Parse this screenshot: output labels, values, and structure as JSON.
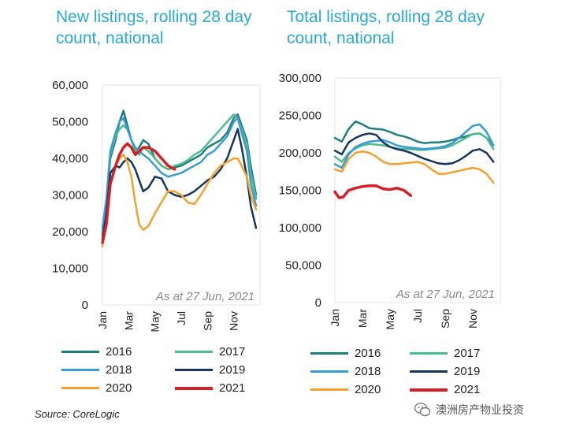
{
  "titles": {
    "left_line1": "New listings, rolling 28 day",
    "left_line2": "count, national",
    "right_line1": "Total listings, rolling 28 day",
    "right_line2": "count, national"
  },
  "source": "Source: CoreLogic",
  "watermark": "澳洲房产物业投资",
  "chart_data": [
    {
      "type": "line",
      "title": "New listings, rolling 28 day count, national",
      "annotation": "As at 27 Jun, 2021",
      "x_tick_labels": [
        "Jan",
        "Mar",
        "May",
        "Jul",
        "Sep",
        "Nov"
      ],
      "x_unit": "month",
      "xlim": [
        0,
        12
      ],
      "ylim": [
        0,
        60000
      ],
      "y_ticks": [
        0,
        10000,
        20000,
        30000,
        40000,
        50000,
        60000
      ],
      "y_tick_labels": [
        "0",
        "10,000",
        "20,000",
        "30,000",
        "40,000",
        "50,000",
        "60,000"
      ],
      "grid": false,
      "legend": "bottom",
      "series": [
        {
          "name": "2016",
          "color": "#1e7f7c",
          "x": [
            0,
            0.3,
            0.6,
            1,
            1.3,
            1.6,
            1.9,
            2.2,
            2.5,
            2.8,
            3.1,
            3.5,
            4,
            4.5,
            5,
            5.5,
            6,
            6.5,
            7,
            7.5,
            8,
            8.5,
            9,
            9.5,
            10,
            10.3,
            10.6,
            11,
            11.3,
            11.7
          ],
          "y": [
            19000,
            27000,
            40000,
            45000,
            50000,
            53000,
            49000,
            45000,
            42000,
            43000,
            45000,
            44000,
            40000,
            38000,
            37000,
            37500,
            38000,
            39000,
            40000,
            41000,
            43000,
            44000,
            45000,
            47000,
            51000,
            52000,
            49000,
            45000,
            38000,
            30000
          ]
        },
        {
          "name": "2017",
          "color": "#4dbd8f",
          "x": [
            0,
            0.3,
            0.6,
            1,
            1.3,
            1.6,
            1.9,
            2.2,
            2.5,
            2.8,
            3.1,
            3.5,
            4,
            4.5,
            5,
            5.5,
            6,
            6.5,
            7,
            7.5,
            8,
            8.5,
            9,
            9.5,
            10,
            10.3,
            10.6,
            11,
            11.3,
            11.7
          ],
          "y": [
            20000,
            28000,
            41000,
            46000,
            48000,
            49000,
            48000,
            45000,
            42000,
            41000,
            43000,
            42000,
            40000,
            38000,
            37000,
            38000,
            38500,
            39500,
            41000,
            42000,
            44000,
            46000,
            48000,
            50000,
            52000,
            51000,
            48000,
            44000,
            36000,
            29000
          ]
        },
        {
          "name": "2018",
          "color": "#3a9bd6",
          "x": [
            0,
            0.3,
            0.6,
            1,
            1.3,
            1.6,
            1.9,
            2.2,
            2.5,
            2.8,
            3.1,
            3.5,
            4,
            4.5,
            5,
            5.5,
            6,
            6.5,
            7,
            7.5,
            8,
            8.5,
            9,
            9.5,
            10,
            10.3,
            10.6,
            11,
            11.3,
            11.7
          ],
          "y": [
            21000,
            29000,
            42000,
            47000,
            50000,
            51000,
            48000,
            45000,
            43000,
            42000,
            41000,
            40000,
            38000,
            36000,
            35000,
            35500,
            36000,
            37000,
            38000,
            39000,
            41000,
            42000,
            44000,
            46000,
            50000,
            51000,
            47000,
            42000,
            33000,
            27000
          ]
        },
        {
          "name": "2019",
          "color": "#17355e",
          "x": [
            0,
            0.3,
            0.6,
            1,
            1.3,
            1.6,
            1.9,
            2.2,
            2.5,
            2.8,
            3.1,
            3.5,
            4,
            4.5,
            5,
            5.5,
            6,
            6.5,
            7,
            7.5,
            8,
            8.5,
            9,
            9.5,
            10,
            10.3,
            10.6,
            11,
            11.3,
            11.7
          ],
          "y": [
            18000,
            25000,
            36000,
            38000,
            37500,
            39000,
            40000,
            39000,
            37000,
            34000,
            31000,
            32000,
            35000,
            34500,
            31000,
            30000,
            29500,
            30000,
            31000,
            32500,
            34000,
            35000,
            37000,
            40000,
            45000,
            48000,
            43000,
            35000,
            27000,
            21000
          ]
        },
        {
          "name": "2020",
          "color": "#f5a12e",
          "x": [
            0,
            0.3,
            0.6,
            1,
            1.3,
            1.6,
            1.9,
            2.2,
            2.5,
            2.8,
            3.1,
            3.5,
            4,
            4.5,
            5,
            5.5,
            6,
            6.5,
            7,
            7.5,
            8,
            8.5,
            9,
            9.5,
            10,
            10.3,
            10.6,
            11,
            11.3,
            11.7
          ],
          "y": [
            16000,
            22000,
            33000,
            38000,
            40000,
            41000,
            39000,
            35000,
            28000,
            22000,
            20500,
            21500,
            25000,
            28000,
            31000,
            31000,
            30000,
            28000,
            27500,
            30000,
            33000,
            36000,
            38000,
            39000,
            40000,
            40000,
            38000,
            35000,
            30000,
            26000
          ]
        },
        {
          "name": "2021",
          "color": "#d62027",
          "x": [
            0,
            0.3,
            0.6,
            1,
            1.3,
            1.6,
            1.9,
            2.2,
            2.5,
            2.8,
            3.1,
            3.5,
            4,
            4.5,
            5,
            5.5
          ],
          "y": [
            17000,
            22000,
            33000,
            38000,
            41000,
            43000,
            44000,
            43000,
            41000,
            42000,
            43000,
            43000,
            42000,
            40000,
            38000,
            37000
          ]
        }
      ]
    },
    {
      "type": "line",
      "title": "Total listings, rolling 28 day count, national",
      "annotation": "As at 27 Jun, 2021",
      "x_tick_labels": [
        "Jan",
        "Mar",
        "May",
        "Jul",
        "Sep",
        "Nov"
      ],
      "x_unit": "month",
      "xlim": [
        0,
        12
      ],
      "ylim": [
        0,
        300000
      ],
      "y_ticks": [
        0,
        50000,
        100000,
        150000,
        200000,
        250000,
        300000
      ],
      "y_tick_labels": [
        "0",
        "50,000",
        "100,000",
        "150,000",
        "200,000",
        "250,000",
        "300,000"
      ],
      "grid": false,
      "legend": "bottom",
      "series": [
        {
          "name": "2016",
          "color": "#1e7f7c",
          "x": [
            0,
            0.5,
            1,
            1.5,
            2,
            2.5,
            3,
            3.5,
            4,
            4.5,
            5,
            5.5,
            6,
            6.5,
            7,
            7.5,
            8,
            8.5,
            9,
            9.5,
            10,
            10.5,
            11,
            11.5
          ],
          "y": [
            220000,
            215000,
            232000,
            242000,
            238000,
            233000,
            232000,
            231000,
            228000,
            224000,
            222000,
            219000,
            215000,
            213000,
            214000,
            214000,
            215000,
            217000,
            220000,
            222000,
            225000,
            226000,
            220000,
            210000
          ]
        },
        {
          "name": "2017",
          "color": "#4dbd8f",
          "x": [
            0,
            0.5,
            1,
            1.5,
            2,
            2.5,
            3,
            3.5,
            4,
            4.5,
            5,
            5.5,
            6,
            6.5,
            7,
            7.5,
            8,
            8.5,
            9,
            9.5,
            10,
            10.5,
            11,
            11.5
          ],
          "y": [
            195000,
            188000,
            200000,
            206000,
            210000,
            212000,
            211000,
            210000,
            208000,
            206000,
            205000,
            205000,
            204000,
            204000,
            205000,
            206000,
            207000,
            210000,
            215000,
            220000,
            225000,
            226000,
            220000,
            205000
          ]
        },
        {
          "name": "2018",
          "color": "#3a9bd6",
          "x": [
            0,
            0.5,
            1,
            1.5,
            2,
            2.5,
            3,
            3.5,
            4,
            4.5,
            5,
            5.5,
            6,
            6.5,
            7,
            7.5,
            8,
            8.5,
            9,
            9.5,
            10,
            10.5,
            11,
            11.5
          ],
          "y": [
            185000,
            180000,
            198000,
            208000,
            212000,
            215000,
            216000,
            217000,
            214000,
            210000,
            208000,
            207000,
            206000,
            205000,
            206000,
            207000,
            209000,
            213000,
            220000,
            228000,
            236000,
            238000,
            228000,
            210000
          ]
        },
        {
          "name": "2019",
          "color": "#17355e",
          "x": [
            0,
            0.5,
            1,
            1.5,
            2,
            2.5,
            3,
            3.5,
            4,
            4.5,
            5,
            5.5,
            6,
            6.5,
            7,
            7.5,
            8,
            8.5,
            9,
            9.5,
            10,
            10.5,
            11,
            11.5
          ],
          "y": [
            203000,
            198000,
            214000,
            220000,
            224000,
            226000,
            224000,
            214000,
            208000,
            205000,
            203000,
            200000,
            196000,
            192000,
            189000,
            186000,
            185000,
            186000,
            190000,
            196000,
            203000,
            205000,
            200000,
            188000
          ]
        },
        {
          "name": "2020",
          "color": "#f5a12e",
          "x": [
            0,
            0.5,
            1,
            1.5,
            2,
            2.5,
            3,
            3.5,
            4,
            4.5,
            5,
            5.5,
            6,
            6.5,
            7,
            7.5,
            8,
            8.5,
            9,
            9.5,
            10,
            10.5,
            11,
            11.5
          ],
          "y": [
            178000,
            175000,
            192000,
            200000,
            202000,
            200000,
            195000,
            188000,
            185000,
            185000,
            186000,
            187000,
            188000,
            185000,
            178000,
            172000,
            172000,
            174000,
            176000,
            178000,
            180000,
            178000,
            172000,
            160000
          ]
        },
        {
          "name": "2021",
          "color": "#d62027",
          "x": [
            0,
            0.3,
            0.6,
            1,
            1.5,
            2,
            2.5,
            3,
            3.5,
            4,
            4.5,
            5,
            5.5
          ],
          "y": [
            148000,
            140000,
            141000,
            150000,
            153000,
            155000,
            156000,
            156000,
            152000,
            151000,
            153000,
            150000,
            143000
          ]
        }
      ]
    }
  ]
}
